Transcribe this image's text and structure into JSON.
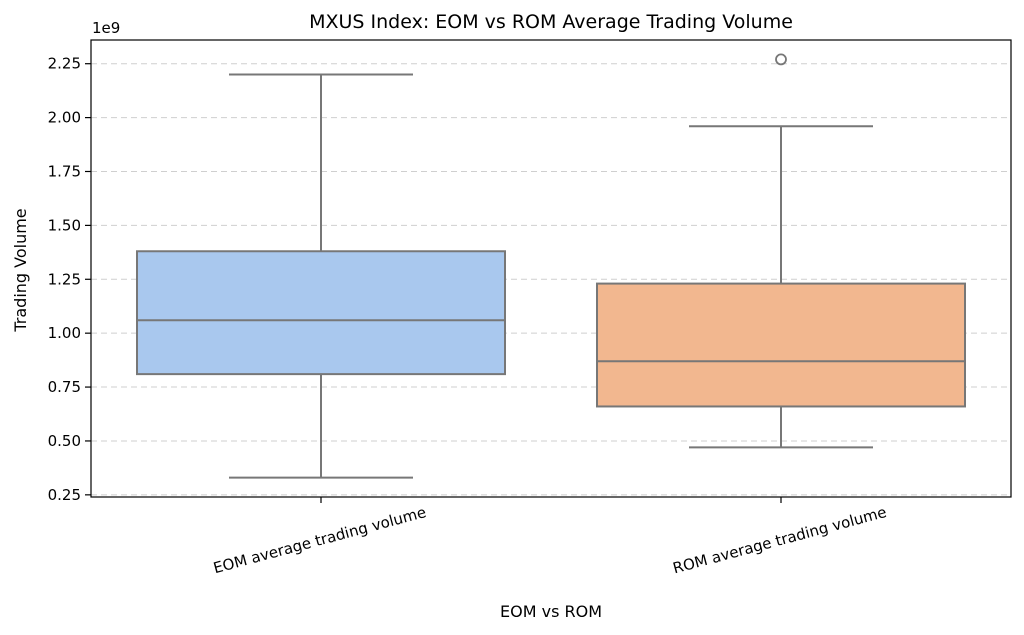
{
  "chart_data": {
    "type": "box",
    "title": "MXUS Index: EOM vs ROM Average Trading Volume",
    "xlabel": "EOM vs ROM",
    "ylabel": "Trading Volume",
    "y_offset_label": "1e9",
    "ylim": [
      0.24,
      2.36
    ],
    "yticks": [
      0.25,
      0.5,
      0.75,
      1.0,
      1.25,
      1.5,
      1.75,
      2.0,
      2.25
    ],
    "ytick_labels": [
      "0.25",
      "0.50",
      "0.75",
      "1.00",
      "1.25",
      "1.50",
      "1.75",
      "2.00",
      "2.25"
    ],
    "grid": "y",
    "categories": [
      "EOM average trading volume",
      "ROM average trading volume"
    ],
    "boxes": [
      {
        "category": "EOM average trading volume",
        "whisker_low": 0.33,
        "q1": 0.81,
        "median": 1.06,
        "q3": 1.38,
        "whisker_high": 2.2,
        "outliers": [],
        "color": "#a9c8ee"
      },
      {
        "category": "ROM average trading volume",
        "whisker_low": 0.47,
        "q1": 0.66,
        "median": 0.87,
        "q3": 1.23,
        "whisker_high": 1.96,
        "outliers": [
          2.27
        ],
        "color": "#f2b78f"
      }
    ]
  }
}
